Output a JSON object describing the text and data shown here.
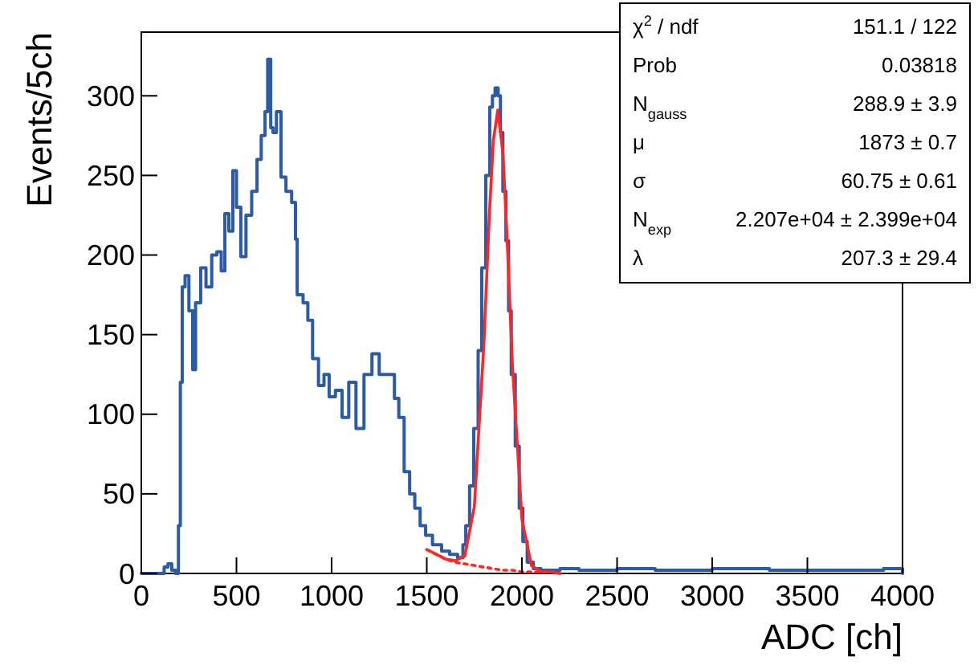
{
  "chart_data": {
    "type": "step",
    "xlabel": "ADC [ch]",
    "ylabel": "Events/5ch",
    "xlim": [
      0,
      4000
    ],
    "ylim": [
      0,
      340
    ],
    "xticks": [
      0,
      500,
      1000,
      1500,
      2000,
      2500,
      3000,
      3500,
      4000
    ],
    "yticks": [
      0,
      50,
      100,
      150,
      200,
      250,
      300
    ],
    "grid": false,
    "series": [
      {
        "color": "#2a5aa8",
        "x": [
          0,
          100,
          120,
          140,
          160,
          180,
          195,
          205,
          215,
          230,
          250,
          270,
          285,
          312,
          340,
          370,
          397,
          420,
          439,
          460,
          481,
          500,
          523,
          550,
          580,
          608,
          630,
          650,
          664,
          680,
          692,
          710,
          734,
          760,
          790,
          810,
          819,
          850,
          875,
          900,
          931,
          960,
          987,
          1020,
          1055,
          1090,
          1128,
          1170,
          1212,
          1250,
          1297,
          1330,
          1353,
          1381,
          1410,
          1437,
          1465,
          1494,
          1530,
          1578,
          1620,
          1662,
          1690,
          1705,
          1725,
          1747,
          1770,
          1789,
          1810,
          1831,
          1845,
          1859,
          1875,
          1887,
          1900,
          1916,
          1930,
          1944,
          1965,
          1986,
          2005,
          2028,
          2060,
          2100,
          2200,
          2300,
          2500,
          2700,
          3000,
          3300,
          3600,
          3900,
          4000
        ],
        "values": [
          0,
          0,
          4,
          6,
          2,
          0,
          30,
          120,
          180,
          187,
          165,
          128,
          170,
          192,
          180,
          200,
          202,
          190,
          226,
          215,
          253,
          230,
          199,
          225,
          240,
          260,
          275,
          290,
          323,
          280,
          277,
          290,
          249,
          240,
          233,
          210,
          175,
          170,
          159,
          135,
          118,
          125,
          111,
          115,
          98,
          120,
          91,
          125,
          138,
          125,
          125,
          110,
          98,
          64,
          50,
          41,
          30,
          24,
          18,
          14,
          12,
          10,
          18,
          30,
          55,
          91,
          140,
          192,
          250,
          293,
          300,
          305,
          300,
          277,
          240,
          209,
          165,
          125,
          80,
          41,
          20,
          7,
          3,
          2,
          3,
          2,
          3,
          2,
          3,
          2,
          2,
          3,
          0
        ]
      },
      {
        "type": "line",
        "color": "#ff2626",
        "line_style": "solid",
        "x": [
          1500,
          1550,
          1600,
          1650,
          1700,
          1750,
          1800,
          1830,
          1850,
          1873,
          1900,
          1920,
          1950,
          2000,
          2050,
          2100,
          2150,
          2200
        ],
        "values": [
          15,
          12,
          9,
          8,
          11,
          42,
          144,
          228,
          272,
          291,
          264,
          216,
          131,
          34,
          5,
          1,
          1,
          0
        ]
      },
      {
        "type": "line",
        "color": "#ff2626",
        "line_style": "dotted",
        "x": [
          1500,
          1550,
          1600,
          1650,
          1700,
          1750,
          1800,
          1850,
          1900,
          1950,
          2000,
          2050,
          2100,
          2150,
          2200
        ],
        "values": [
          15,
          12,
          9,
          7,
          6,
          5,
          4,
          3,
          2,
          2,
          1,
          1,
          1,
          1,
          0
        ]
      }
    ],
    "annotations": [
      "χ$^{2}$ / ndf",
      "151.1 / 122",
      "Prob",
      "0.03818",
      "N$_{gauss}$",
      "288.9 ± 3.9",
      "μ",
      "1873 ± 0.7",
      "σ",
      "60.75 ± 0.61",
      "N$_{exp}$",
      "2.207e+04 ± 2.399e+04",
      "λ",
      "207.3 ± 29.4"
    ]
  }
}
